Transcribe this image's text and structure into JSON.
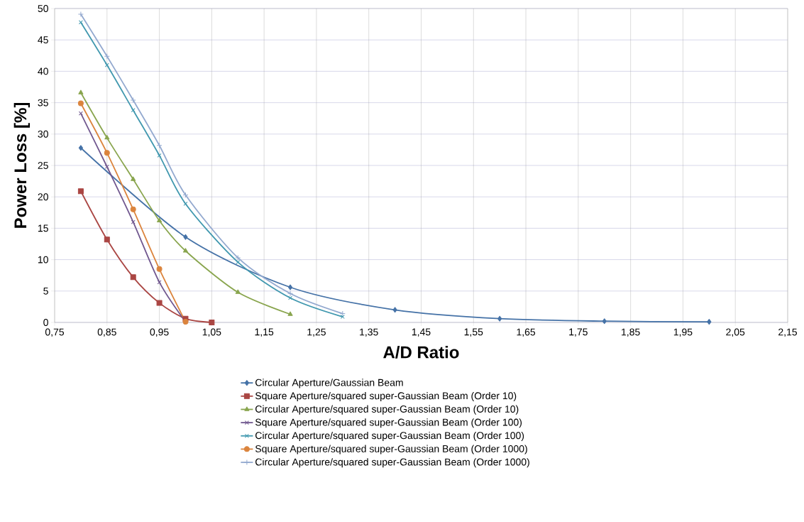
{
  "chart_data": {
    "type": "line",
    "xlabel": "A/D Ratio",
    "ylabel": "Power Loss [%]",
    "xlim": [
      0.75,
      2.15
    ],
    "xticks": [
      {
        "value": 0.75,
        "label": "0,75"
      },
      {
        "value": 0.85,
        "label": "0,85"
      },
      {
        "value": 0.95,
        "label": "0,95"
      },
      {
        "value": 1.05,
        "label": "1,05"
      },
      {
        "value": 1.15,
        "label": "1,15"
      },
      {
        "value": 1.25,
        "label": "1,25"
      },
      {
        "value": 1.35,
        "label": "1,35"
      },
      {
        "value": 1.45,
        "label": "1,45"
      },
      {
        "value": 1.55,
        "label": "1,55"
      },
      {
        "value": 1.65,
        "label": "1,65"
      },
      {
        "value": 1.75,
        "label": "1,75"
      },
      {
        "value": 1.85,
        "label": "1,85"
      },
      {
        "value": 1.95,
        "label": "1,95"
      },
      {
        "value": 2.05,
        "label": "2,05"
      },
      {
        "value": 2.15,
        "label": "2,15"
      }
    ],
    "ylim": [
      0,
      50
    ],
    "yticks": [
      0,
      5,
      10,
      15,
      20,
      25,
      30,
      35,
      40,
      45,
      50
    ],
    "grid": true,
    "legend": "bottom",
    "line_style": "solid",
    "series": [
      {
        "name": "Circular Aperture/Gaussian Beam",
        "color": "#4572a7",
        "marker": "diamond",
        "x": [
          0.8,
          1.0,
          1.2,
          1.4,
          1.6,
          1.8,
          2.0
        ],
        "values": [
          27.8,
          13.6,
          5.6,
          2.0,
          0.6,
          0.2,
          0.1
        ]
      },
      {
        "name": "Square Aperture/squared super-Gaussian Beam (Order 10)",
        "color": "#aa4643",
        "marker": "square",
        "x": [
          0.8,
          0.85,
          0.9,
          0.95,
          1.0,
          1.05
        ],
        "values": [
          20.9,
          13.2,
          7.2,
          3.1,
          0.6,
          0.0
        ]
      },
      {
        "name": "Circular Aperture/squared super-Gaussian Beam (Order 10)",
        "color": "#89a54e",
        "marker": "triangle",
        "x": [
          0.8,
          0.85,
          0.9,
          0.95,
          1.0,
          1.1,
          1.2
        ],
        "values": [
          36.6,
          29.4,
          22.8,
          16.2,
          11.4,
          4.8,
          1.3
        ]
      },
      {
        "name": "Square Aperture/squared super-Gaussian Beam (Order 100)",
        "color": "#71588f",
        "marker": "cross",
        "x": [
          0.8,
          0.85,
          0.9,
          0.95,
          1.0
        ],
        "values": [
          33.3,
          24.8,
          16.0,
          6.4,
          0.1
        ]
      },
      {
        "name": "Circular Aperture/squared super-Gaussian Beam (Order 100)",
        "color": "#4198af",
        "marker": "cross",
        "x": [
          0.8,
          0.85,
          0.9,
          0.95,
          1.0,
          1.1,
          1.2,
          1.3
        ],
        "values": [
          47.8,
          41.0,
          33.8,
          26.6,
          18.9,
          9.6,
          3.9,
          0.9
        ]
      },
      {
        "name": "Square Aperture/squared super-Gaussian Beam (Order 1000)",
        "color": "#db843d",
        "marker": "circle",
        "x": [
          0.8,
          0.85,
          0.9,
          0.95,
          1.0
        ],
        "values": [
          34.9,
          27.0,
          18.0,
          8.5,
          0.1
        ]
      },
      {
        "name": "Circular Aperture/squared super-Gaussian Beam (Order 1000)",
        "color": "#93a9cf",
        "marker": "plus",
        "x": [
          0.8,
          0.85,
          0.9,
          0.95,
          1.0,
          1.1,
          1.2,
          1.3
        ],
        "values": [
          49.1,
          42.4,
          35.4,
          28.2,
          20.3,
          10.3,
          4.6,
          1.4
        ]
      }
    ]
  }
}
